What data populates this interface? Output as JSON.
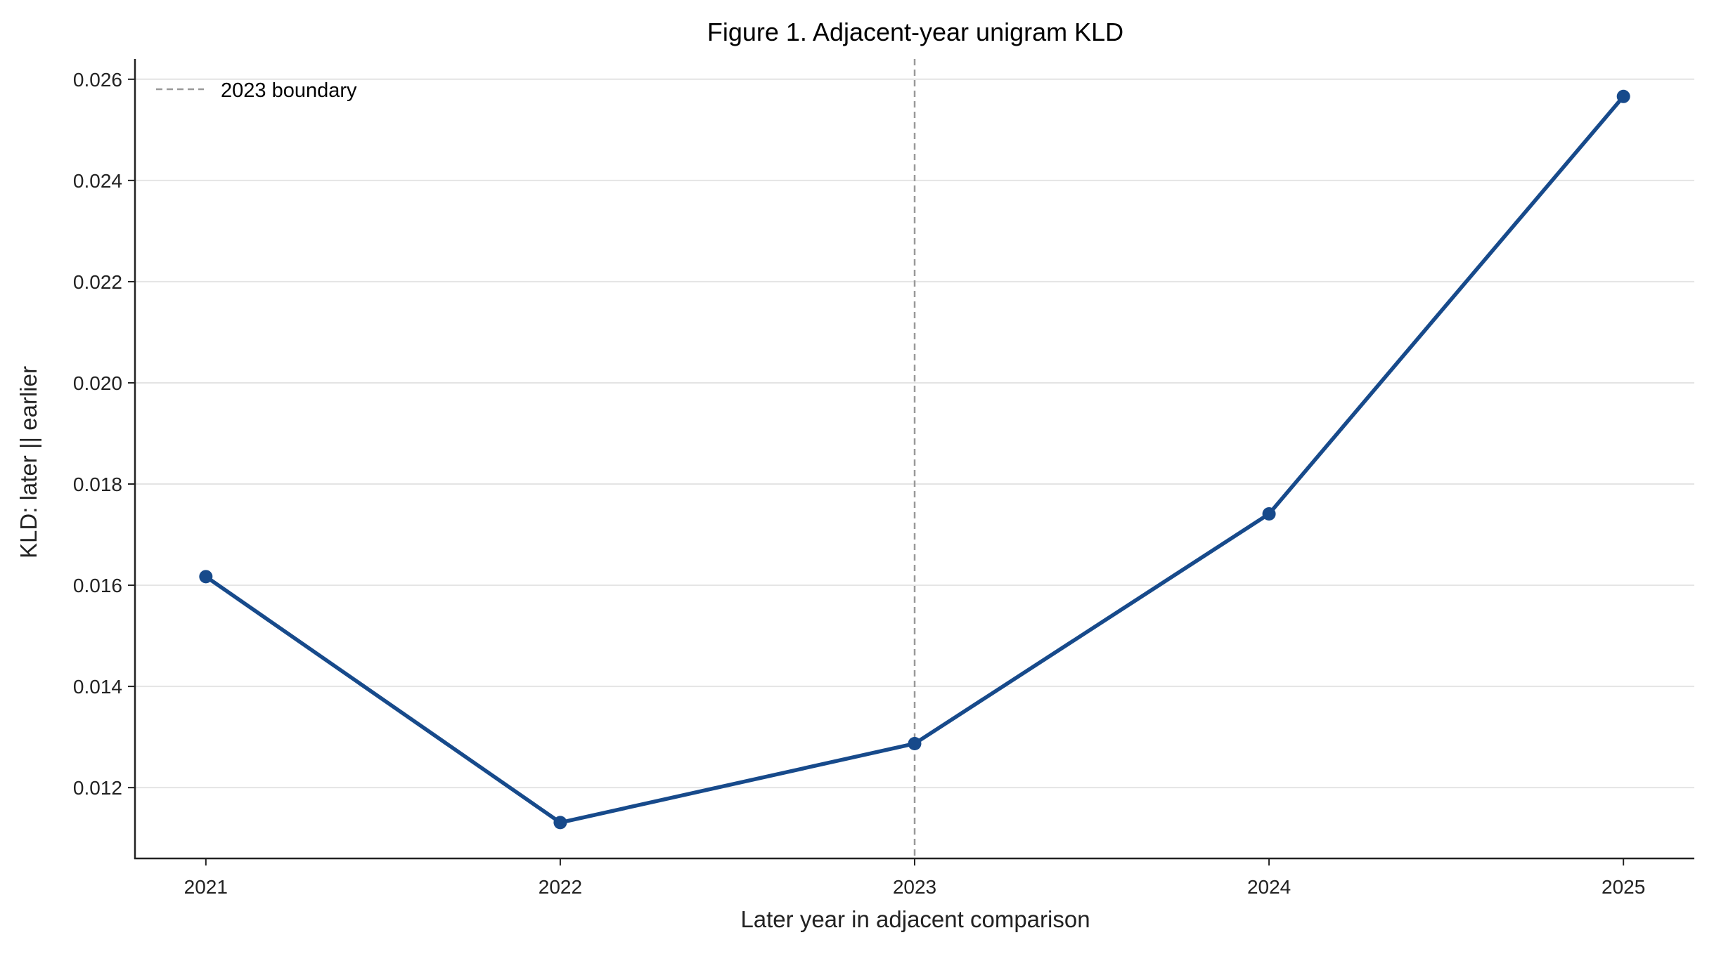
{
  "chart_data": {
    "type": "line",
    "title": "Figure 1. Adjacent-year unigram KLD",
    "xlabel": "Later year in adjacent comparison",
    "ylabel": "KLD: later || earlier",
    "x": [
      2021,
      2022,
      2023,
      2024,
      2025
    ],
    "x_tick_labels": [
      "2021",
      "2022",
      "2023",
      "2024",
      "2025"
    ],
    "xlim": [
      2020.8,
      2025.2
    ],
    "ylim": [
      0.0106,
      0.0264
    ],
    "y_ticks": [
      0.012,
      0.014,
      0.016,
      0.018,
      0.02,
      0.022,
      0.024,
      0.026
    ],
    "y_tick_labels": [
      "0.012",
      "0.014",
      "0.016",
      "0.018",
      "0.020",
      "0.022",
      "0.024",
      "0.026"
    ],
    "series": [
      {
        "values": [
          0.01617,
          0.01131,
          0.01287,
          0.01741,
          0.02566
        ],
        "color": "#174a8b",
        "marker": "circle"
      }
    ],
    "reference_lines": [
      {
        "orientation": "vertical",
        "x": 2023,
        "label": "2023 boundary",
        "color": "#999999",
        "style": "dashed"
      }
    ],
    "grid": "horizontal",
    "legend_position": "top-left"
  }
}
